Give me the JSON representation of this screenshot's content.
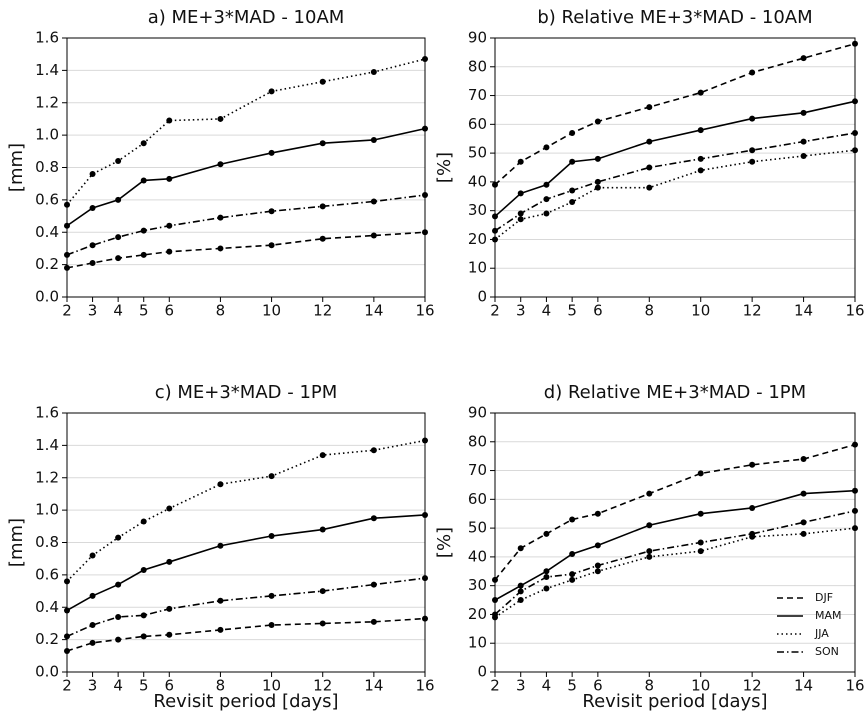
{
  "chart_data": [
    {
      "type": "line",
      "title": "a) ME+3*MAD - 10AM",
      "ylabel": "[mm]",
      "x": [
        2,
        3,
        4,
        5,
        6,
        8,
        10,
        12,
        14,
        16
      ],
      "xlim": [
        2,
        16
      ],
      "xticks": [
        2,
        3,
        4,
        5,
        6,
        8,
        10,
        12,
        14,
        16
      ],
      "ylim": [
        0,
        1.6
      ],
      "yticks": [
        {
          "value": 0,
          "label": "0.0"
        },
        0.2,
        0.4,
        0.6,
        0.8,
        {
          "value": 1,
          "label": "1.0"
        },
        1.2,
        1.4,
        1.6
      ],
      "grid": true,
      "series": [
        {
          "dash": "dashed",
          "color": "#000000",
          "values": [
            0.18,
            0.21,
            0.24,
            0.26,
            0.28,
            0.3,
            0.32,
            0.36,
            0.38,
            0.4
          ]
        },
        {
          "dash": "solid",
          "color": "#000000",
          "values": [
            0.44,
            0.55,
            0.6,
            0.72,
            0.73,
            0.82,
            0.89,
            0.95,
            0.97,
            1.04
          ]
        },
        {
          "dash": "dotted",
          "color": "#000000",
          "values": [
            0.57,
            0.76,
            0.84,
            0.95,
            1.09,
            1.1,
            1.27,
            1.33,
            1.39,
            1.47
          ]
        },
        {
          "dash": "dashdot",
          "color": "#000000",
          "values": [
            0.26,
            0.32,
            0.37,
            0.41,
            0.44,
            0.49,
            0.53,
            0.56,
            0.59,
            0.63
          ]
        }
      ]
    },
    {
      "type": "line",
      "title": "b) Relative ME+3*MAD - 10AM",
      "ylabel": "[%]",
      "x": [
        2,
        3,
        4,
        5,
        6,
        8,
        10,
        12,
        14,
        16
      ],
      "xlim": [
        2,
        16
      ],
      "xticks": [
        2,
        3,
        4,
        5,
        6,
        8,
        10,
        12,
        14,
        16
      ],
      "ylim": [
        0,
        90
      ],
      "yticks": [
        0,
        10,
        20,
        30,
        40,
        50,
        60,
        70,
        80,
        90
      ],
      "grid": true,
      "series": [
        {
          "dash": "dashed",
          "color": "#000000",
          "values": [
            39,
            47,
            52,
            57,
            61,
            66,
            71,
            78,
            83,
            88
          ]
        },
        {
          "dash": "solid",
          "color": "#000000",
          "values": [
            28,
            36,
            39,
            47,
            48,
            54,
            58,
            62,
            64,
            68
          ]
        },
        {
          "dash": "dotted",
          "color": "#000000",
          "values": [
            20,
            27,
            29,
            33,
            38,
            38,
            44,
            47,
            49,
            51
          ]
        },
        {
          "dash": "dashdot",
          "color": "#000000",
          "values": [
            23,
            29,
            34,
            37,
            40,
            45,
            48,
            51,
            54,
            57
          ]
        }
      ]
    },
    {
      "type": "line",
      "title": "c) ME+3*MAD - 1PM",
      "ylabel": "[mm]",
      "xlabel": "Revisit period [days]",
      "x": [
        2,
        3,
        4,
        5,
        6,
        8,
        10,
        12,
        14,
        16
      ],
      "xlim": [
        2,
        16
      ],
      "xticks": [
        2,
        3,
        4,
        5,
        6,
        8,
        10,
        12,
        14,
        16
      ],
      "ylim": [
        0,
        1.6
      ],
      "yticks": [
        {
          "value": 0,
          "label": "0.0"
        },
        0.2,
        0.4,
        0.6,
        0.8,
        {
          "value": 1,
          "label": "1.0"
        },
        1.2,
        1.4,
        1.6
      ],
      "grid": true,
      "series": [
        {
          "dash": "dashed",
          "color": "#000000",
          "values": [
            0.13,
            0.18,
            0.2,
            0.22,
            0.23,
            0.26,
            0.29,
            0.3,
            0.31,
            0.33
          ]
        },
        {
          "dash": "solid",
          "color": "#000000",
          "values": [
            0.38,
            0.47,
            0.54,
            0.63,
            0.68,
            0.78,
            0.84,
            0.88,
            0.95,
            0.97
          ]
        },
        {
          "dash": "dotted",
          "color": "#000000",
          "values": [
            0.56,
            0.72,
            0.83,
            0.93,
            1.01,
            1.16,
            1.21,
            1.34,
            1.37,
            1.43
          ]
        },
        {
          "dash": "dashdot",
          "color": "#000000",
          "values": [
            0.22,
            0.29,
            0.34,
            0.35,
            0.39,
            0.44,
            0.47,
            0.5,
            0.54,
            0.58
          ]
        }
      ]
    },
    {
      "type": "line",
      "title": "d) Relative ME+3*MAD - 1PM",
      "ylabel": "[%]",
      "xlabel": "Revisit period [days]",
      "x": [
        2,
        3,
        4,
        5,
        6,
        8,
        10,
        12,
        14,
        16
      ],
      "xlim": [
        2,
        16
      ],
      "xticks": [
        2,
        3,
        4,
        5,
        6,
        8,
        10,
        12,
        14,
        16
      ],
      "ylim": [
        0,
        90
      ],
      "yticks": [
        0,
        10,
        20,
        30,
        40,
        50,
        60,
        70,
        80,
        90
      ],
      "grid": true,
      "legend": "lower right",
      "series": [
        {
          "name": "DJF",
          "dash": "dashed",
          "color": "#000000",
          "values": [
            32,
            43,
            48,
            53,
            55,
            62,
            69,
            72,
            74,
            79
          ]
        },
        {
          "name": "MAM",
          "dash": "solid",
          "color": "#000000",
          "values": [
            25,
            30,
            35,
            41,
            44,
            51,
            55,
            57,
            62,
            63
          ]
        },
        {
          "name": "JJA",
          "dash": "dotted",
          "color": "#000000",
          "values": [
            19,
            25,
            29,
            32,
            35,
            40,
            42,
            47,
            48,
            50
          ]
        },
        {
          "name": "SON",
          "dash": "dashdot",
          "color": "#000000",
          "values": [
            20,
            28,
            33,
            34,
            37,
            42,
            45,
            48,
            52,
            56
          ]
        }
      ]
    }
  ]
}
